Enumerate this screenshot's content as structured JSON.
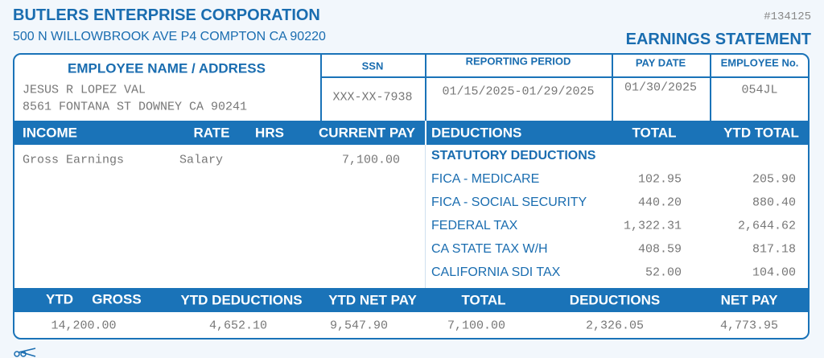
{
  "company": {
    "name": "BUTLERS ENTERPRISE CORPORATION",
    "address": "500 N WILLOWBROOK AVE P4 COMPTON CA 90220"
  },
  "document_number": "#134125",
  "title": "EARNINGS STATEMENT",
  "employee_info": {
    "headers": [
      "EMPLOYEE NAME / ADDRESS",
      "SSN",
      "REPORTING PERIOD",
      "PAY DATE",
      "EMPLOYEE No."
    ],
    "name": "JESUS R LOPEZ VAL",
    "address": "8561 FONTANA ST DOWNEY CA 90241",
    "ssn": "XXX-XX-7938",
    "reporting_period": "01/15/2025-01/29/2025",
    "pay_date": "01/30/2025",
    "employee_no": "054JL"
  },
  "income": {
    "headers": [
      "INCOME",
      "RATE",
      "HRS",
      "CURRENT PAY"
    ],
    "rows": [
      {
        "description": "Gross Earnings",
        "rate": "Salary",
        "current_pay": "7,100.00"
      }
    ]
  },
  "deductions": {
    "headers": [
      "DEDUCTIONS",
      "TOTAL",
      "YTD TOTAL"
    ],
    "section": "STATUTORY DEDUCTIONS",
    "rows": [
      {
        "name": "FICA - MEDICARE",
        "total": "102.95",
        "ytd_total": "205.90"
      },
      {
        "name": "FICA - SOCIAL SECURITY",
        "total": "440.20",
        "ytd_total": "880.40"
      },
      {
        "name": "FEDERAL TAX",
        "total": "1,322.31",
        "ytd_total": "2,644.62"
      },
      {
        "name": "CA STATE TAX W/H",
        "total": "408.59",
        "ytd_total": "817.18"
      },
      {
        "name": "CALIFORNIA SDI TAX",
        "total": "52.00",
        "ytd_total": "104.00"
      }
    ]
  },
  "summary": {
    "headers": [
      "YTD",
      "GROSS",
      "YTD DEDUCTIONS",
      "YTD NET PAY",
      "TOTAL",
      "DEDUCTIONS",
      "NET PAY"
    ],
    "values": [
      "14,200.00",
      "4,652.10",
      "9,547.90",
      "7,100.00",
      "2,326.05",
      "4,773.95"
    ]
  }
}
